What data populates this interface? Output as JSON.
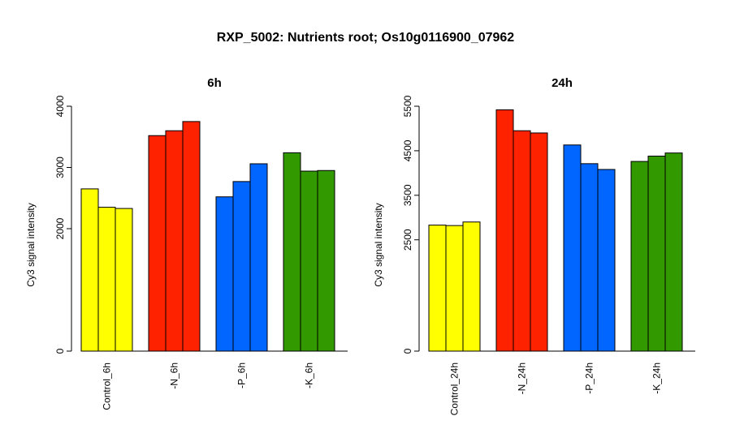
{
  "title": "RXP_5002: Nutrients root; Os10g0116900_07962",
  "chart_data": [
    {
      "type": "bar",
      "title": "6h",
      "ylabel": "Cy3 signal intensity",
      "categories": [
        "Control_6h",
        "-N_6h",
        "-P_6h",
        "-K_6h"
      ],
      "yticks": [
        "0",
        "2000",
        "3000",
        "4000"
      ],
      "ylim": [
        0,
        4000
      ],
      "colors": [
        "#ffff00",
        "#ff2200",
        "#0066ff",
        "#339900"
      ],
      "values": [
        [
          2650,
          2350,
          2330
        ],
        [
          3520,
          3600,
          3750
        ],
        [
          2520,
          2770,
          3060
        ],
        [
          3240,
          2940,
          2950
        ]
      ]
    },
    {
      "type": "bar",
      "title": "24h",
      "ylabel": "Cy3 signal intensity",
      "categories": [
        "Control_24h",
        "-N_24h",
        "-P_24h",
        "-K_24h"
      ],
      "yticks": [
        "0",
        "2500",
        "3500",
        "4500",
        "5500"
      ],
      "ylim": [
        0,
        5500
      ],
      "colors": [
        "#ffff00",
        "#ff2200",
        "#0066ff",
        "#339900"
      ],
      "values": [
        [
          2830,
          2820,
          2900
        ],
        [
          5420,
          4950,
          4900
        ],
        [
          4630,
          4210,
          4080
        ],
        [
          4260,
          4380,
          4450
        ]
      ]
    }
  ]
}
